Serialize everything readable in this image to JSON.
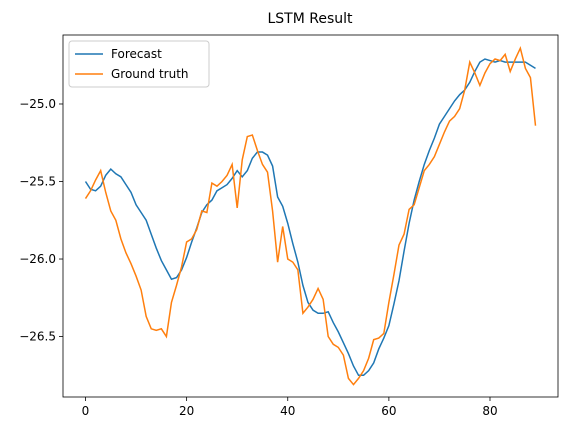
{
  "chart_data": {
    "type": "line",
    "title": "LSTM Result",
    "x": [
      0,
      1,
      2,
      3,
      4,
      5,
      6,
      7,
      8,
      9,
      10,
      11,
      12,
      13,
      14,
      15,
      16,
      17,
      18,
      19,
      20,
      21,
      22,
      23,
      24,
      25,
      26,
      27,
      28,
      29,
      30,
      31,
      32,
      33,
      34,
      35,
      36,
      37,
      38,
      39,
      40,
      41,
      42,
      43,
      44,
      45,
      46,
      47,
      48,
      49,
      50,
      51,
      52,
      53,
      54,
      55,
      56,
      57,
      58,
      59,
      60,
      61,
      62,
      63,
      64,
      65,
      66,
      67,
      68,
      69,
      70,
      71,
      72,
      73,
      74,
      75,
      76,
      77,
      78,
      79,
      80,
      81,
      82,
      83,
      84,
      85,
      86,
      87,
      88,
      89
    ],
    "series": [
      {
        "name": "Forecast",
        "color": "#1f77b4",
        "values": [
          -25.5,
          -25.55,
          -25.56,
          -25.53,
          -25.46,
          -25.42,
          -25.45,
          -25.47,
          -25.52,
          -25.57,
          -25.65,
          -25.7,
          -25.75,
          -25.84,
          -25.93,
          -26.01,
          -26.07,
          -26.13,
          -26.12,
          -26.07,
          -25.99,
          -25.89,
          -25.8,
          -25.7,
          -25.65,
          -25.62,
          -25.56,
          -25.54,
          -25.52,
          -25.48,
          -25.43,
          -25.47,
          -25.43,
          -25.35,
          -25.31,
          -25.31,
          -25.33,
          -25.4,
          -25.6,
          -25.66,
          -25.77,
          -25.9,
          -26.02,
          -26.17,
          -26.28,
          -26.33,
          -26.35,
          -26.35,
          -26.34,
          -26.41,
          -26.47,
          -26.54,
          -26.61,
          -26.69,
          -26.75,
          -26.75,
          -26.72,
          -26.67,
          -26.58,
          -26.51,
          -26.43,
          -26.29,
          -26.14,
          -25.95,
          -25.77,
          -25.62,
          -25.5,
          -25.39,
          -25.3,
          -25.22,
          -25.13,
          -25.08,
          -25.03,
          -24.98,
          -24.94,
          -24.91,
          -24.86,
          -24.79,
          -24.73,
          -24.71,
          -24.72,
          -24.73,
          -24.72,
          -24.73,
          -24.73,
          -24.73,
          -24.73,
          -24.73,
          -24.75,
          -24.77
        ]
      },
      {
        "name": "Ground truth",
        "color": "#ff7f0e",
        "values": [
          -25.61,
          -25.56,
          -25.49,
          -25.43,
          -25.57,
          -25.69,
          -25.75,
          -25.87,
          -25.96,
          -26.03,
          -26.11,
          -26.2,
          -26.37,
          -26.45,
          -26.46,
          -26.45,
          -26.5,
          -26.28,
          -26.17,
          -26.05,
          -25.89,
          -25.87,
          -25.81,
          -25.69,
          -25.7,
          -25.51,
          -25.53,
          -25.5,
          -25.46,
          -25.39,
          -25.67,
          -25.36,
          -25.21,
          -25.2,
          -25.3,
          -25.39,
          -25.44,
          -25.69,
          -26.02,
          -25.79,
          -26.0,
          -26.02,
          -26.07,
          -26.35,
          -26.31,
          -26.26,
          -26.19,
          -26.26,
          -26.5,
          -26.55,
          -26.57,
          -26.62,
          -26.77,
          -26.81,
          -26.77,
          -26.72,
          -26.64,
          -26.52,
          -26.51,
          -26.48,
          -26.28,
          -26.1,
          -25.91,
          -25.84,
          -25.68,
          -25.65,
          -25.54,
          -25.43,
          -25.39,
          -25.34,
          -25.26,
          -25.18,
          -25.11,
          -25.08,
          -25.03,
          -24.91,
          -24.73,
          -24.8,
          -24.88,
          -24.8,
          -24.74,
          -24.71,
          -24.72,
          -24.68,
          -24.79,
          -24.71,
          -24.64,
          -24.77,
          -24.83,
          -25.14
        ]
      }
    ],
    "xlim": [
      -4.45,
      93.45
    ],
    "ylim": [
      -26.89,
      -24.555
    ],
    "xticks": [
      0,
      20,
      40,
      60,
      80
    ],
    "yticks": [
      {
        "value": -25.0,
        "label": "−25.0"
      },
      {
        "value": -25.5,
        "label": "−25.5"
      },
      {
        "value": -26.0,
        "label": "−26.0"
      },
      {
        "value": -26.5,
        "label": "−26.5"
      }
    ],
    "legend": "upper left"
  }
}
